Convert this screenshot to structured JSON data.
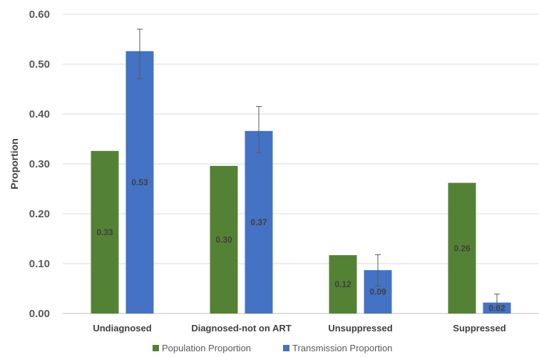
{
  "chart_data": {
    "type": "bar",
    "categories": [
      "Undiagnosed",
      "Diagnosed-not on ART",
      "Unsuppressed",
      "Suppressed"
    ],
    "series": [
      {
        "name": "Population Proportion",
        "color": "#548235",
        "values": [
          0.326,
          0.296,
          0.117,
          0.262
        ],
        "labels": [
          "0.33",
          "0.30",
          "0.12",
          "0.26"
        ]
      },
      {
        "name": "Transmission Proportion",
        "color": "#4472c4",
        "values": [
          0.526,
          0.366,
          0.087,
          0.022
        ],
        "labels": [
          "0.53",
          "0.37",
          "0.09",
          "0.02"
        ],
        "error_low": [
          0.471,
          0.322,
          0.055,
          0.012
        ],
        "error_high": [
          0.57,
          0.415,
          0.118,
          0.039
        ]
      }
    ],
    "ylabel": "Proportion",
    "xlabel": "",
    "title": "",
    "ylim": [
      0,
      0.6
    ],
    "yticks": [
      "0.00",
      "0.10",
      "0.20",
      "0.30",
      "0.40",
      "0.50",
      "0.60"
    ],
    "grid": true,
    "legend_position": "bottom"
  }
}
